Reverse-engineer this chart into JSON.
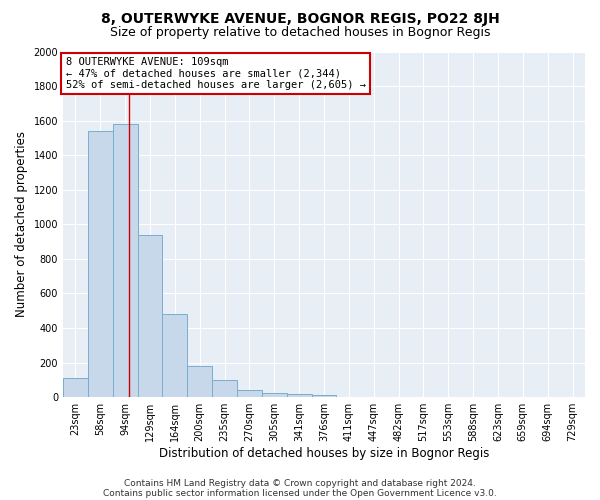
{
  "title": "8, OUTERWYKE AVENUE, BOGNOR REGIS, PO22 8JH",
  "subtitle": "Size of property relative to detached houses in Bognor Regis",
  "xlabel": "Distribution of detached houses by size in Bognor Regis",
  "ylabel": "Number of detached properties",
  "footer_line1": "Contains HM Land Registry data © Crown copyright and database right 2024.",
  "footer_line2": "Contains public sector information licensed under the Open Government Licence v3.0.",
  "bin_labels": [
    "23sqm",
    "58sqm",
    "94sqm",
    "129sqm",
    "164sqm",
    "200sqm",
    "235sqm",
    "270sqm",
    "305sqm",
    "341sqm",
    "376sqm",
    "411sqm",
    "447sqm",
    "482sqm",
    "517sqm",
    "553sqm",
    "588sqm",
    "623sqm",
    "659sqm",
    "694sqm",
    "729sqm"
  ],
  "bar_values": [
    110,
    1540,
    1580,
    940,
    480,
    180,
    100,
    40,
    25,
    18,
    15,
    0,
    0,
    0,
    0,
    0,
    0,
    0,
    0,
    0,
    0
  ],
  "bar_color": "#c8d8eb",
  "bar_edge_color": "#7aadcc",
  "background_color": "#e8eef6",
  "grid_color": "#ffffff",
  "annotation_line1": "8 OUTERWYKE AVENUE: 109sqm",
  "annotation_line2": "← 47% of detached houses are smaller (2,344)",
  "annotation_line3": "52% of semi-detached houses are larger (2,605) →",
  "annotation_box_color": "#ffffff",
  "annotation_box_edge": "#cc0000",
  "red_line_x": 2.15,
  "ylim": [
    0,
    2000
  ],
  "yticks": [
    0,
    200,
    400,
    600,
    800,
    1000,
    1200,
    1400,
    1600,
    1800,
    2000
  ],
  "title_fontsize": 10,
  "subtitle_fontsize": 9,
  "ylabel_fontsize": 8.5,
  "xlabel_fontsize": 8.5,
  "tick_fontsize": 7,
  "annot_fontsize": 7.5,
  "footer_fontsize": 6.5
}
